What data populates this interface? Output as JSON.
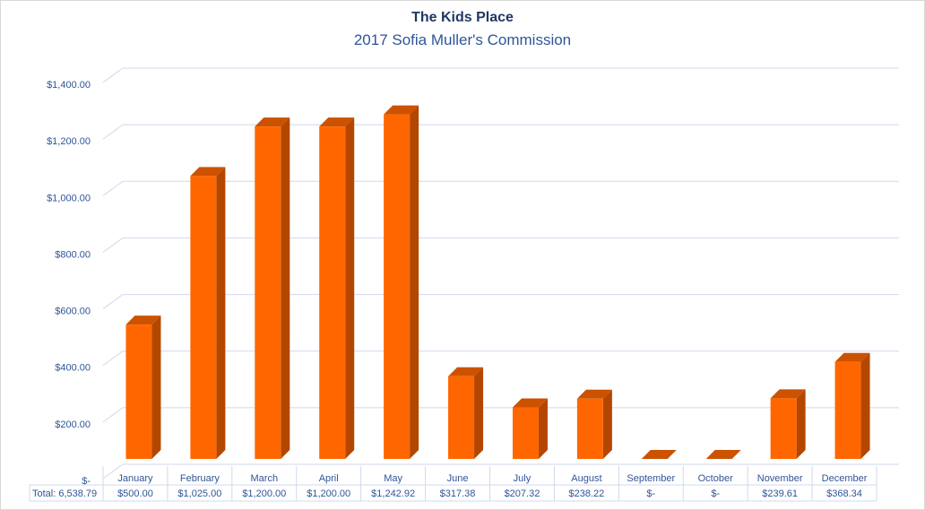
{
  "chart_data": {
    "type": "bar",
    "title": "The Kids Place",
    "subtitle": "2017 Sofia Muller's Commission",
    "categories": [
      "January",
      "February",
      "March",
      "April",
      "May",
      "June",
      "July",
      "August",
      "September",
      "October",
      "November",
      "December"
    ],
    "values": [
      500.0,
      1025.0,
      1200.0,
      1200.0,
      1242.92,
      317.38,
      207.32,
      238.22,
      0,
      0,
      239.61,
      368.34
    ],
    "value_labels": [
      "$500.00",
      "$1,025.00",
      "$1,200.00",
      "$1,200.00",
      "$1,242.92",
      "$317.38",
      "$207.32",
      "$238.22",
      "$-",
      "$-",
      "$239.61",
      "$368.34"
    ],
    "ylim": [
      0,
      1400
    ],
    "yticks": [
      0,
      200,
      400,
      600,
      800,
      1000,
      1200,
      1400
    ],
    "ytick_labels": [
      "$-",
      "$200.00",
      "$400.00",
      "$600.00",
      "$800.00",
      "$1,000.00",
      "$1,200.00",
      "$1,400.00"
    ],
    "table_total_label": "Total: 6,538.79",
    "grid": true,
    "bar_style": "3d",
    "colors": {
      "bar_front": "#ff6600",
      "bar_side": "#b34700",
      "bar_top": "#cc5200",
      "grid": "#d0d8ee",
      "text": "#2f5597"
    }
  }
}
